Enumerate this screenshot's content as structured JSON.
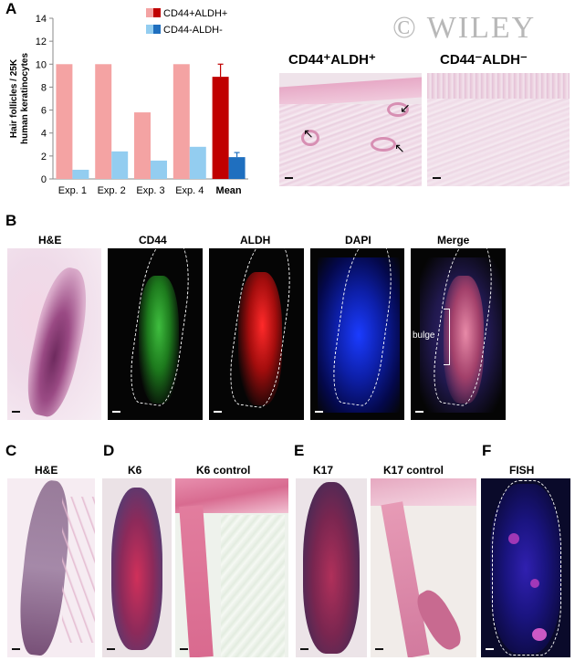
{
  "copyright": "© WILEY",
  "panels": {
    "A": "A",
    "B": "B",
    "C": "C",
    "D": "D",
    "E": "E",
    "F": "F"
  },
  "panelA": {
    "micro_titles": [
      "CD44⁺ALDH⁺",
      "CD44⁻ALDH⁻"
    ]
  },
  "panelB": {
    "titles": [
      "H&E",
      "CD44",
      "ALDH",
      "DAPI",
      "Merge"
    ],
    "bulge_label": "bulge"
  },
  "panelC": {
    "title": "H&E"
  },
  "panelD": {
    "titles": [
      "K6",
      "K6 control"
    ]
  },
  "panelE": {
    "titles": [
      "K17",
      "K17 control"
    ]
  },
  "panelF": {
    "title": "FISH"
  },
  "colors": {
    "cd44pos_exp": "#f4a3a3",
    "cd44pos_mean": "#c00000",
    "cd44neg_exp": "#93cdf0",
    "cd44neg_mean": "#1f6fbf"
  },
  "chart_data": {
    "type": "bar",
    "ylabel": "Hair follicles / 25K human keratinocytes",
    "ylim": [
      0,
      14
    ],
    "yticks": [
      0,
      2,
      4,
      6,
      8,
      10,
      12,
      14
    ],
    "categories": [
      "Exp. 1",
      "Exp. 2",
      "Exp. 3",
      "Exp. 4",
      "Mean"
    ],
    "legend": [
      "CD44+ALDH+",
      "CD44-ALDH-"
    ],
    "legend_position": "top",
    "grid": false,
    "series": [
      {
        "name": "CD44+ALDH+",
        "values": [
          10,
          10,
          5.8,
          10,
          8.9
        ],
        "error": [
          null,
          null,
          null,
          null,
          1.1
        ]
      },
      {
        "name": "CD44-ALDH-",
        "values": [
          0.8,
          2.4,
          1.6,
          2.8,
          1.9
        ],
        "error": [
          null,
          null,
          null,
          null,
          0.4
        ]
      }
    ]
  }
}
